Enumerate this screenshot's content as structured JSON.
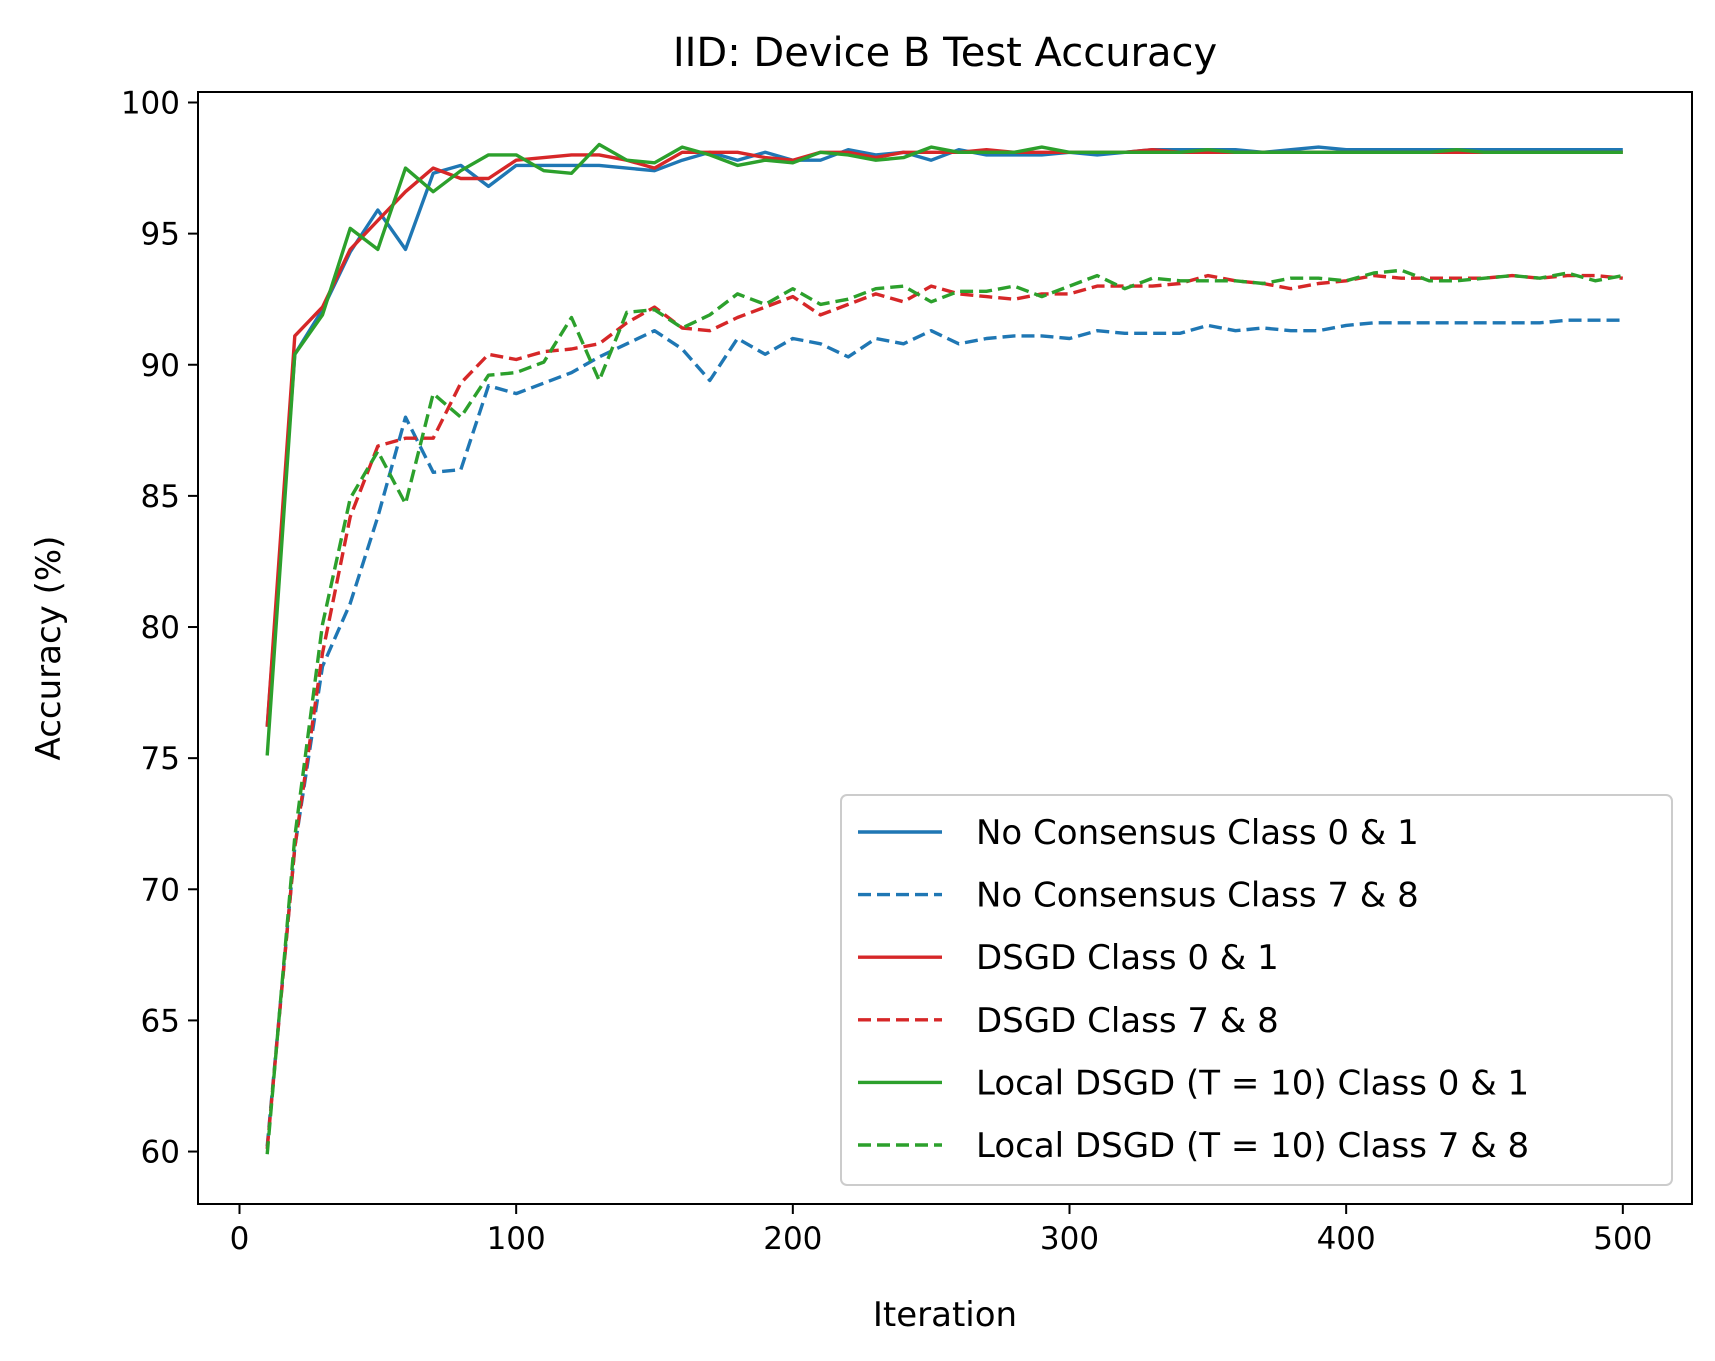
{
  "chart_data": {
    "type": "line",
    "title": "IID: Device B Test Accuracy",
    "xlabel": "Iteration",
    "ylabel": "Accuracy (%)",
    "xlim": [
      -15,
      525
    ],
    "ylim": [
      58,
      100.4
    ],
    "xticks": [
      0,
      100,
      200,
      300,
      400,
      500
    ],
    "xtick_labels": [
      "0",
      "100",
      "200",
      "300",
      "400",
      "500"
    ],
    "yticks": [
      60,
      65,
      70,
      75,
      80,
      85,
      90,
      95,
      100
    ],
    "ytick_labels": [
      "60",
      "65",
      "70",
      "75",
      "80",
      "85",
      "90",
      "95",
      "100"
    ],
    "grid": false,
    "legend_position": "lower right",
    "x": [
      10,
      20,
      30,
      40,
      50,
      60,
      70,
      80,
      90,
      100,
      110,
      120,
      130,
      140,
      150,
      160,
      170,
      180,
      190,
      200,
      210,
      220,
      230,
      240,
      250,
      260,
      270,
      280,
      290,
      300,
      310,
      320,
      330,
      340,
      350,
      360,
      370,
      380,
      390,
      400,
      410,
      420,
      430,
      440,
      450,
      460,
      470,
      480,
      490,
      500
    ],
    "series": [
      {
        "name": "No Consensus Class 0 & 1",
        "color": "#1f77b4",
        "dash": "solid",
        "values": [
          76.2,
          90.4,
          92.1,
          94.3,
          95.9,
          94.4,
          97.3,
          97.6,
          96.8,
          97.6,
          97.6,
          97.6,
          97.6,
          97.5,
          97.4,
          97.8,
          98.1,
          97.8,
          98.1,
          97.8,
          97.8,
          98.2,
          98.0,
          98.1,
          97.8,
          98.2,
          98.0,
          98.0,
          98.0,
          98.1,
          98.0,
          98.1,
          98.2,
          98.2,
          98.2,
          98.2,
          98.1,
          98.2,
          98.3,
          98.2,
          98.2,
          98.2,
          98.2,
          98.2,
          98.2,
          98.2,
          98.2,
          98.2,
          98.2,
          98.2
        ]
      },
      {
        "name": "No Consensus Class 7 & 8",
        "color": "#1f77b4",
        "dash": "dashed",
        "values": [
          60.2,
          71.6,
          78.5,
          80.9,
          84.2,
          88.0,
          85.9,
          86.0,
          89.2,
          88.9,
          89.3,
          89.7,
          90.3,
          90.8,
          91.3,
          90.6,
          89.4,
          91.0,
          90.4,
          91.0,
          90.8,
          90.3,
          91.0,
          90.8,
          91.3,
          90.8,
          91.0,
          91.1,
          91.1,
          91.0,
          91.3,
          91.2,
          91.2,
          91.2,
          91.5,
          91.3,
          91.4,
          91.3,
          91.3,
          91.5,
          91.6,
          91.6,
          91.6,
          91.6,
          91.6,
          91.6,
          91.6,
          91.7,
          91.7,
          91.7
        ]
      },
      {
        "name": "DSGD Class 0 & 1",
        "color": "#d62728",
        "dash": "solid",
        "values": [
          76.2,
          91.1,
          92.2,
          94.4,
          95.5,
          96.6,
          97.5,
          97.1,
          97.1,
          97.8,
          97.9,
          98.0,
          98.0,
          97.8,
          97.5,
          98.1,
          98.1,
          98.1,
          97.9,
          97.8,
          98.1,
          98.1,
          97.9,
          98.1,
          98.1,
          98.1,
          98.2,
          98.1,
          98.1,
          98.1,
          98.1,
          98.1,
          98.2,
          98.1,
          98.1,
          98.1,
          98.1,
          98.1,
          98.1,
          98.1,
          98.1,
          98.1,
          98.1,
          98.1,
          98.1,
          98.1,
          98.1,
          98.1,
          98.1,
          98.1
        ]
      },
      {
        "name": "DSGD Class 7 & 8",
        "color": "#d62728",
        "dash": "dashed",
        "values": [
          60.1,
          71.6,
          79.0,
          84.2,
          86.9,
          87.2,
          87.2,
          89.3,
          90.4,
          90.2,
          90.5,
          90.6,
          90.8,
          91.6,
          92.2,
          91.4,
          91.3,
          91.8,
          92.2,
          92.6,
          91.9,
          92.3,
          92.7,
          92.4,
          93.0,
          92.7,
          92.6,
          92.5,
          92.7,
          92.7,
          93.0,
          93.0,
          93.0,
          93.1,
          93.4,
          93.2,
          93.1,
          92.9,
          93.1,
          93.2,
          93.4,
          93.3,
          93.3,
          93.3,
          93.3,
          93.4,
          93.3,
          93.4,
          93.4,
          93.3
        ]
      },
      {
        "name": "Local DSGD (T = 10) Class 0 & 1",
        "color": "#2ca02c",
        "dash": "solid",
        "values": [
          75.1,
          90.4,
          91.9,
          95.2,
          94.4,
          97.5,
          96.6,
          97.4,
          98.0,
          98.0,
          97.4,
          97.3,
          98.4,
          97.8,
          97.7,
          98.3,
          98.0,
          97.6,
          97.8,
          97.7,
          98.1,
          98.0,
          97.8,
          97.9,
          98.3,
          98.1,
          98.1,
          98.1,
          98.3,
          98.1,
          98.1,
          98.1,
          98.1,
          98.1,
          98.2,
          98.1,
          98.1,
          98.1,
          98.1,
          98.1,
          98.1,
          98.1,
          98.1,
          98.2,
          98.1,
          98.1,
          98.1,
          98.1,
          98.1,
          98.1
        ]
      },
      {
        "name": "Local DSGD (T = 10) Class 7 & 8",
        "color": "#2ca02c",
        "dash": "dashed",
        "values": [
          59.9,
          72.0,
          80.1,
          84.9,
          86.7,
          84.7,
          88.9,
          88.0,
          89.6,
          89.7,
          90.1,
          91.8,
          89.4,
          92.0,
          92.1,
          91.4,
          91.9,
          92.7,
          92.3,
          92.9,
          92.3,
          92.5,
          92.9,
          93.0,
          92.4,
          92.8,
          92.8,
          93.0,
          92.6,
          93.0,
          93.4,
          92.9,
          93.3,
          93.2,
          93.2,
          93.2,
          93.1,
          93.3,
          93.3,
          93.2,
          93.5,
          93.6,
          93.2,
          93.2,
          93.3,
          93.4,
          93.3,
          93.5,
          93.2,
          93.4
        ]
      }
    ]
  }
}
